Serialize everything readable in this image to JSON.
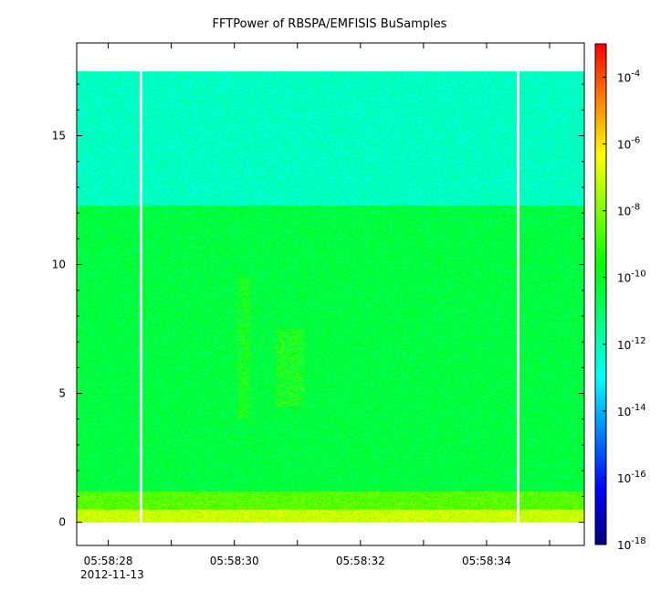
{
  "chart_data": {
    "type": "heatmap",
    "title": "FFTPower of RBSPA/EMFISIS  BuSamples",
    "xlabel": "",
    "ylabel": "",
    "x_date_label": "2012-11-13",
    "x_ticks": [
      {
        "value": 28,
        "label": "05:58:28"
      },
      {
        "value": 29,
        "label": ""
      },
      {
        "value": 30,
        "label": "05:58:30"
      },
      {
        "value": 31,
        "label": ""
      },
      {
        "value": 32,
        "label": "05:58:32"
      },
      {
        "value": 33,
        "label": ""
      },
      {
        "value": 34,
        "label": "05:58:34"
      },
      {
        "value": 35,
        "label": ""
      }
    ],
    "x_range_seconds": [
      27.5,
      35.55
    ],
    "y_ticks": [
      0,
      5,
      10,
      15
    ],
    "y_tick_labels": [
      "0",
      "5",
      "10",
      "15"
    ],
    "ylim": [
      -0.9,
      18.6
    ],
    "data_top_kHz": 17.5,
    "data_bottom_kHz": 0.0,
    "gaps_seconds": [
      28.52,
      34.5
    ],
    "colorbar": {
      "scale": "log",
      "range": [
        1e-18,
        0.001
      ],
      "tick_exponents": [
        -4,
        -6,
        -8,
        -10,
        -12,
        -14,
        -16,
        -18
      ],
      "tick_base": "10",
      "colors": [
        "#00007f",
        "#0000ff",
        "#007fff",
        "#00ffff",
        "#00ff7f",
        "#00ff00",
        "#7fff00",
        "#ffff00",
        "#ff7f00",
        "#ff0000"
      ]
    },
    "bands": [
      {
        "y0": 12.3,
        "y1": 17.5,
        "log_power": -12.2
      },
      {
        "y0": 1.2,
        "y1": 12.3,
        "log_power": -10.5
      },
      {
        "y0": 0.5,
        "y1": 1.2,
        "log_power": -8.5
      },
      {
        "y0": 0.0,
        "y1": 0.5,
        "log_power": -7.0
      }
    ],
    "features": [
      {
        "kind": "whistler-trace",
        "x_range": [
          30.05,
          30.25
        ],
        "y_range": [
          4.0,
          9.5
        ],
        "log_power": -8.8
      },
      {
        "kind": "chorus-patch",
        "x_range": [
          30.65,
          31.1
        ],
        "y_range": [
          4.5,
          7.5
        ],
        "log_power": -8.6
      }
    ]
  }
}
